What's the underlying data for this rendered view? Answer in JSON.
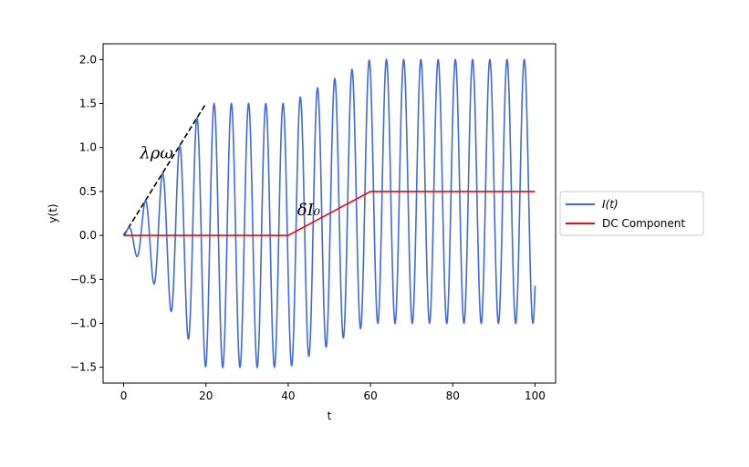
{
  "chart_data": {
    "type": "line",
    "title": "",
    "xlabel": "t",
    "ylabel": "y(t)",
    "xlim": [
      -5,
      105
    ],
    "ylim": [
      -1.68,
      2.18
    ],
    "xticks": [
      0,
      20,
      40,
      60,
      80,
      100
    ],
    "xtick_labels": [
      "0",
      "20",
      "40",
      "60",
      "80",
      "100"
    ],
    "yticks": [
      -1.5,
      -1.0,
      -0.5,
      0.0,
      0.5,
      1.0,
      1.5,
      2.0
    ],
    "ytick_labels": [
      "−1.5",
      "−1.0",
      "−0.5",
      "0.0",
      "0.5",
      "1.0",
      "1.5",
      "2.0"
    ],
    "grid": false,
    "legend_position": "center-left outside right",
    "series": [
      {
        "name": "I(t)",
        "color": "#4169e1",
        "style": "solid",
        "description_values": {
          "formula": "dc(t) + amp(t) * sin(1.5 * t)",
          "amplitude_ramp": [
            [
              0,
              0
            ],
            [
              20,
              1.5
            ],
            [
              100,
              1.5
            ]
          ],
          "t_range": [
            0,
            100
          ]
        }
      },
      {
        "name": "DC Component",
        "color": "#ff0000",
        "style": "solid",
        "x": [
          0,
          40,
          60,
          100
        ],
        "y": [
          0,
          0,
          0.5,
          0.5
        ]
      }
    ],
    "guides": [
      {
        "style": "dashed",
        "color": "#000000",
        "x": [
          0,
          20
        ],
        "y": [
          0,
          1.5
        ]
      }
    ],
    "annotations": [
      {
        "text": "λρω",
        "x": 8,
        "y": 0.95
      },
      {
        "text": "δI₀",
        "x": 45,
        "y": 0.3
      }
    ]
  }
}
